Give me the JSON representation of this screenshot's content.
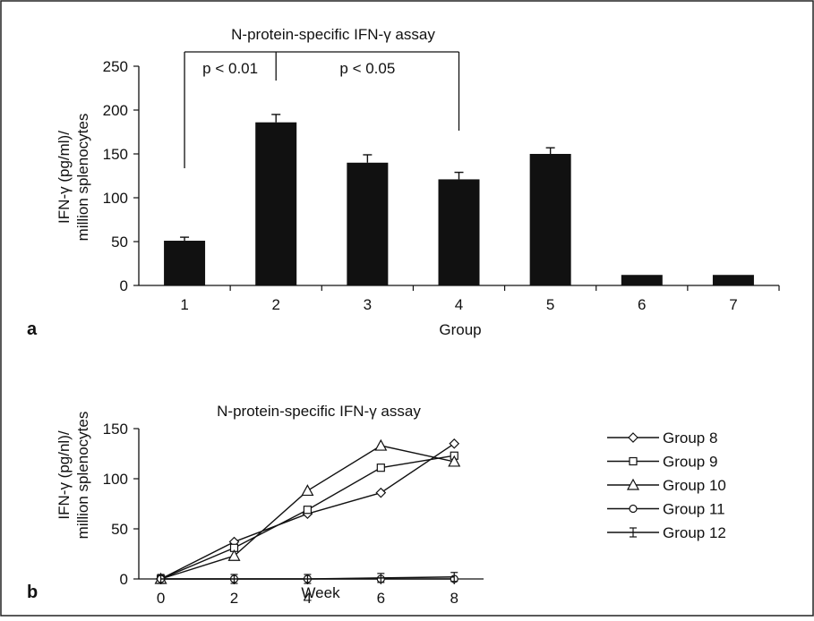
{
  "chart_data": [
    {
      "panel_label": "a",
      "type": "bar",
      "title": "N-protein-specific IFN-γ assay",
      "xlabel": "Group",
      "ylabel_line1": "IFN-γ (pg/ml)/",
      "ylabel_line2": "million splenocytes",
      "categories": [
        "1",
        "2",
        "3",
        "4",
        "5",
        "6",
        "7"
      ],
      "values": [
        51,
        186,
        140,
        121,
        150,
        12,
        12
      ],
      "errors": [
        4,
        9,
        9,
        8,
        7,
        0,
        0
      ],
      "ylim": [
        0,
        250
      ],
      "yticks": [
        "0",
        "50",
        "100",
        "150",
        "200",
        "250"
      ],
      "bar_color": "#111111",
      "annotations": [
        {
          "text": "p < 0.01",
          "from_category": "1",
          "to_category": "2"
        },
        {
          "text": "p < 0.05",
          "from_category": "2",
          "to_category": "4"
        }
      ]
    },
    {
      "panel_label": "b",
      "type": "line",
      "title": "N-protein-specific IFN-γ assay",
      "xlabel": "Week",
      "ylabel_line1": "IFN-γ (pg/nl)/",
      "ylabel_line2": "million splenocytes",
      "x": [
        0,
        2,
        4,
        6,
        8
      ],
      "xticks": [
        "0",
        "2",
        "4",
        "6",
        "8"
      ],
      "xlim": [
        -0.6,
        8.8
      ],
      "ylim": [
        0,
        150
      ],
      "yticks": [
        "0",
        "50",
        "100",
        "150"
      ],
      "legend_placement": "right",
      "series": [
        {
          "name": "Group 8",
          "marker": "diamond",
          "values": [
            0,
            37,
            65,
            86,
            135
          ]
        },
        {
          "name": "Group 9",
          "marker": "square",
          "values": [
            0,
            31,
            69,
            111,
            123
          ]
        },
        {
          "name": "Group 10",
          "marker": "triangle",
          "values": [
            0,
            23,
            88,
            133,
            117
          ]
        },
        {
          "name": "Group 11",
          "marker": "circle",
          "values": [
            0,
            0,
            0,
            0,
            0
          ]
        },
        {
          "name": "Group 12",
          "marker": "errbar",
          "values": [
            0,
            0,
            0,
            1,
            2
          ]
        }
      ]
    }
  ]
}
